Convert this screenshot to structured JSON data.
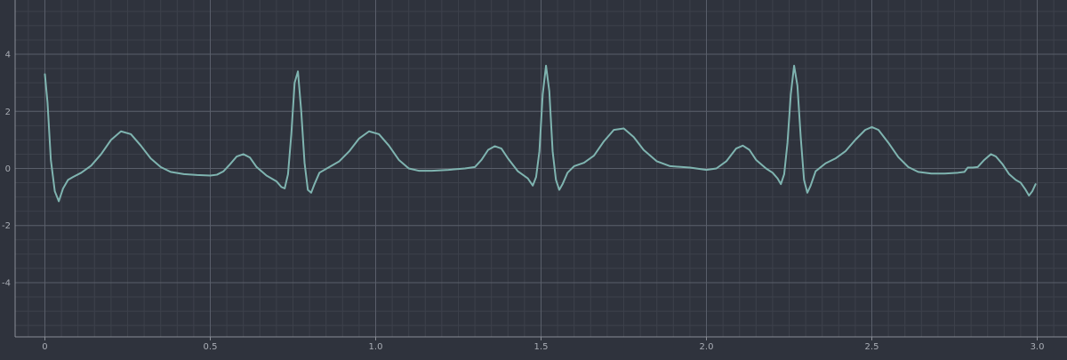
{
  "chart_data": {
    "type": "line",
    "xlim": [
      -0.09,
      3.09
    ],
    "ylim": [
      -5.9,
      5.9
    ],
    "x_ticks": [
      0,
      0.5,
      1.0,
      1.5,
      2.0,
      2.5,
      3.0
    ],
    "x_tick_labels": [
      "0",
      "0.5",
      "1.0",
      "1.5",
      "2.0",
      "2.5",
      "3.0"
    ],
    "y_ticks": [
      -4,
      -2,
      0,
      2,
      4
    ],
    "y_tick_labels": [
      "-4",
      "-2",
      "0",
      "2",
      "4"
    ],
    "major_grid": true,
    "minor_grid": true,
    "colors": {
      "background": "#2f333d",
      "line": "#7fb4b0",
      "major_grid": "#5a5f6a",
      "minor_grid": "#3d414b",
      "axis": "#8a8e96",
      "tick_label": "#a9adb5"
    },
    "series": [
      {
        "points": [
          [
            0.0,
            3.3
          ],
          [
            0.008,
            2.3
          ],
          [
            0.018,
            0.3
          ],
          [
            0.03,
            -0.8
          ],
          [
            0.042,
            -1.15
          ],
          [
            0.055,
            -0.7
          ],
          [
            0.07,
            -0.4
          ],
          [
            0.085,
            -0.3
          ],
          [
            0.11,
            -0.15
          ],
          [
            0.14,
            0.1
          ],
          [
            0.17,
            0.5
          ],
          [
            0.2,
            1.0
          ],
          [
            0.23,
            1.3
          ],
          [
            0.26,
            1.2
          ],
          [
            0.29,
            0.8
          ],
          [
            0.32,
            0.35
          ],
          [
            0.35,
            0.05
          ],
          [
            0.38,
            -0.12
          ],
          [
            0.42,
            -0.2
          ],
          [
            0.46,
            -0.23
          ],
          [
            0.5,
            -0.25
          ],
          [
            0.52,
            -0.22
          ],
          [
            0.54,
            -0.1
          ],
          [
            0.56,
            0.15
          ],
          [
            0.58,
            0.42
          ],
          [
            0.6,
            0.5
          ],
          [
            0.62,
            0.38
          ],
          [
            0.64,
            0.05
          ],
          [
            0.67,
            -0.25
          ],
          [
            0.7,
            -0.45
          ],
          [
            0.715,
            -0.65
          ],
          [
            0.725,
            -0.7
          ],
          [
            0.735,
            -0.2
          ],
          [
            0.745,
            1.2
          ],
          [
            0.755,
            3.0
          ],
          [
            0.765,
            3.4
          ],
          [
            0.775,
            2.0
          ],
          [
            0.785,
            0.2
          ],
          [
            0.795,
            -0.75
          ],
          [
            0.805,
            -0.85
          ],
          [
            0.815,
            -0.55
          ],
          [
            0.83,
            -0.15
          ],
          [
            0.86,
            0.05
          ],
          [
            0.89,
            0.25
          ],
          [
            0.92,
            0.6
          ],
          [
            0.95,
            1.05
          ],
          [
            0.98,
            1.3
          ],
          [
            1.01,
            1.2
          ],
          [
            1.04,
            0.8
          ],
          [
            1.07,
            0.3
          ],
          [
            1.1,
            0.0
          ],
          [
            1.13,
            -0.08
          ],
          [
            1.17,
            -0.08
          ],
          [
            1.22,
            -0.05
          ],
          [
            1.27,
            0.0
          ],
          [
            1.3,
            0.05
          ],
          [
            1.32,
            0.3
          ],
          [
            1.34,
            0.65
          ],
          [
            1.36,
            0.78
          ],
          [
            1.38,
            0.7
          ],
          [
            1.4,
            0.35
          ],
          [
            1.43,
            -0.1
          ],
          [
            1.46,
            -0.35
          ],
          [
            1.475,
            -0.6
          ],
          [
            1.485,
            -0.3
          ],
          [
            1.495,
            0.6
          ],
          [
            1.505,
            2.6
          ],
          [
            1.515,
            3.6
          ],
          [
            1.525,
            2.7
          ],
          [
            1.535,
            0.6
          ],
          [
            1.545,
            -0.4
          ],
          [
            1.555,
            -0.75
          ],
          [
            1.565,
            -0.55
          ],
          [
            1.58,
            -0.15
          ],
          [
            1.6,
            0.08
          ],
          [
            1.63,
            0.2
          ],
          [
            1.66,
            0.45
          ],
          [
            1.69,
            0.95
          ],
          [
            1.72,
            1.35
          ],
          [
            1.75,
            1.4
          ],
          [
            1.78,
            1.1
          ],
          [
            1.81,
            0.65
          ],
          [
            1.85,
            0.25
          ],
          [
            1.89,
            0.08
          ],
          [
            1.95,
            0.03
          ],
          [
            2.0,
            -0.05
          ],
          [
            2.03,
            0.0
          ],
          [
            2.06,
            0.25
          ],
          [
            2.09,
            0.7
          ],
          [
            2.11,
            0.8
          ],
          [
            2.13,
            0.65
          ],
          [
            2.15,
            0.3
          ],
          [
            2.18,
            0.0
          ],
          [
            2.2,
            -0.15
          ],
          [
            2.215,
            -0.35
          ],
          [
            2.225,
            -0.55
          ],
          [
            2.235,
            -0.2
          ],
          [
            2.245,
            0.9
          ],
          [
            2.255,
            2.6
          ],
          [
            2.265,
            3.6
          ],
          [
            2.275,
            2.9
          ],
          [
            2.285,
            1.1
          ],
          [
            2.295,
            -0.4
          ],
          [
            2.305,
            -0.85
          ],
          [
            2.315,
            -0.6
          ],
          [
            2.33,
            -0.1
          ],
          [
            2.36,
            0.18
          ],
          [
            2.39,
            0.35
          ],
          [
            2.42,
            0.6
          ],
          [
            2.45,
            1.0
          ],
          [
            2.48,
            1.35
          ],
          [
            2.5,
            1.45
          ],
          [
            2.52,
            1.35
          ],
          [
            2.55,
            0.9
          ],
          [
            2.58,
            0.4
          ],
          [
            2.61,
            0.05
          ],
          [
            2.64,
            -0.12
          ],
          [
            2.68,
            -0.18
          ],
          [
            2.72,
            -0.18
          ],
          [
            2.76,
            -0.15
          ],
          [
            2.78,
            -0.12
          ],
          [
            2.79,
            0.03
          ],
          [
            2.805,
            0.03
          ],
          [
            2.82,
            0.05
          ],
          [
            2.84,
            0.3
          ],
          [
            2.86,
            0.5
          ],
          [
            2.875,
            0.42
          ],
          [
            2.895,
            0.15
          ],
          [
            2.915,
            -0.2
          ],
          [
            2.935,
            -0.4
          ],
          [
            2.95,
            -0.5
          ],
          [
            2.965,
            -0.75
          ],
          [
            2.975,
            -0.95
          ],
          [
            2.985,
            -0.8
          ],
          [
            2.995,
            -0.55
          ]
        ]
      }
    ]
  }
}
